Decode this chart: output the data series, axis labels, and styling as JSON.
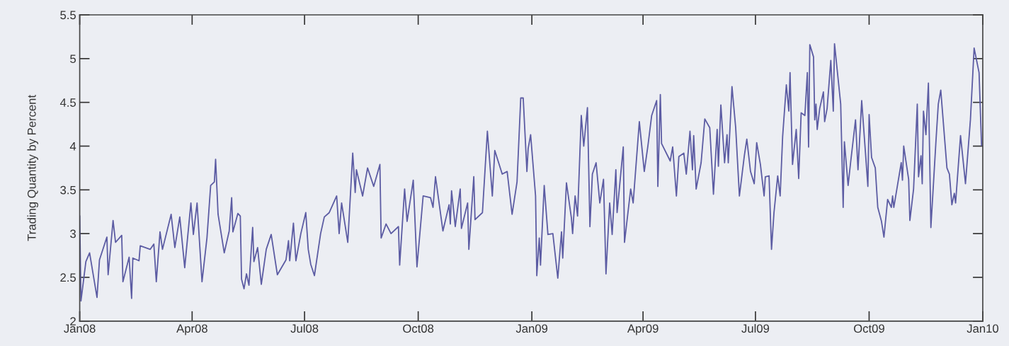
{
  "chart_data": {
    "type": "line",
    "ylabel": "Trading Quantity by Percent",
    "xlim": [
      "2008-01-01",
      "2010-01-01"
    ],
    "xticks": [
      {
        "value": "2008-01-01",
        "label": "Jan08"
      },
      {
        "value": "2008-04-01",
        "label": "Apr08"
      },
      {
        "value": "2008-07-01",
        "label": "Jul08"
      },
      {
        "value": "2008-10-01",
        "label": "Oct08"
      },
      {
        "value": "2009-01-01",
        "label": "Jan09"
      },
      {
        "value": "2009-04-01",
        "label": "Apr09"
      },
      {
        "value": "2009-07-01",
        "label": "Jul09"
      },
      {
        "value": "2009-10-01",
        "label": "Oct09"
      },
      {
        "value": "2010-01-01",
        "label": "Jan10"
      }
    ],
    "ylim": [
      2,
      5.5
    ],
    "yticks": [
      2,
      2.5,
      3,
      3.5,
      4,
      4.5,
      5,
      5.5
    ],
    "grid": false,
    "marker": "none",
    "line_style": "solid",
    "x": [
      "2008-01-01",
      "2008-01-02",
      "2008-01-06",
      "2008-01-09",
      "2008-01-13",
      "2008-01-15",
      "2008-01-17",
      "2008-01-23",
      "2008-01-24",
      "2008-01-28",
      "2008-01-30",
      "2008-02-04",
      "2008-02-05",
      "2008-02-10",
      "2008-02-12",
      "2008-02-13",
      "2008-02-18",
      "2008-02-19",
      "2008-02-27",
      "2008-03-01",
      "2008-03-03",
      "2008-03-06",
      "2008-03-08",
      "2008-03-15",
      "2008-03-18",
      "2008-03-22",
      "2008-03-26",
      "2008-03-31",
      "2008-04-02",
      "2008-04-05",
      "2008-04-09",
      "2008-04-13",
      "2008-04-16",
      "2008-04-19",
      "2008-04-20",
      "2008-04-22",
      "2008-04-27",
      "2008-05-01",
      "2008-05-03",
      "2008-05-04",
      "2008-05-08",
      "2008-05-10",
      "2008-05-11",
      "2008-05-13",
      "2008-05-15",
      "2008-05-17",
      "2008-05-20",
      "2008-05-21",
      "2008-05-24",
      "2008-05-27",
      "2008-05-31",
      "2008-06-04",
      "2008-06-09",
      "2008-06-16",
      "2008-06-18",
      "2008-06-19",
      "2008-06-22",
      "2008-06-24",
      "2008-06-28",
      "2008-07-02",
      "2008-07-04",
      "2008-07-06",
      "2008-07-09",
      "2008-07-14",
      "2008-07-17",
      "2008-07-21",
      "2008-07-27",
      "2008-07-29",
      "2008-07-31",
      "2008-08-05",
      "2008-08-09",
      "2008-08-11",
      "2008-08-12",
      "2008-08-17",
      "2008-08-21",
      "2008-08-26",
      "2008-08-31",
      "2008-09-01",
      "2008-09-05",
      "2008-09-09",
      "2008-09-15",
      "2008-09-16",
      "2008-09-20",
      "2008-09-22",
      "2008-09-27",
      "2008-09-30",
      "2008-10-05",
      "2008-10-11",
      "2008-10-13",
      "2008-10-15",
      "2008-10-21",
      "2008-10-26",
      "2008-10-27",
      "2008-10-28",
      "2008-10-31",
      "2008-11-04",
      "2008-11-05",
      "2008-11-10",
      "2008-11-11",
      "2008-11-15",
      "2008-11-16",
      "2008-11-22",
      "2008-11-26",
      "2008-11-30",
      "2008-12-02",
      "2008-12-08",
      "2008-12-12",
      "2008-12-16",
      "2008-12-20",
      "2008-12-23",
      "2008-12-25",
      "2008-12-28",
      "2008-12-29",
      "2008-12-31",
      "2009-01-04",
      "2009-01-05",
      "2009-01-07",
      "2009-01-08",
      "2009-01-11",
      "2009-01-14",
      "2009-01-18",
      "2009-01-22",
      "2009-01-25",
      "2009-01-26",
      "2009-01-29",
      "2009-02-02",
      "2009-02-03",
      "2009-02-05",
      "2009-02-07",
      "2009-02-10",
      "2009-02-12",
      "2009-02-15",
      "2009-02-17",
      "2009-02-19",
      "2009-02-22",
      "2009-02-25",
      "2009-02-28",
      "2009-03-02",
      "2009-03-05",
      "2009-03-07",
      "2009-03-10",
      "2009-03-11",
      "2009-03-16",
      "2009-03-17",
      "2009-03-22",
      "2009-03-24",
      "2009-03-29",
      "2009-04-02",
      "2009-04-05",
      "2009-04-08",
      "2009-04-12",
      "2009-04-13",
      "2009-04-15",
      "2009-04-16",
      "2009-04-23",
      "2009-04-25",
      "2009-04-28",
      "2009-04-30",
      "2009-05-04",
      "2009-05-06",
      "2009-05-09",
      "2009-05-11",
      "2009-05-12",
      "2009-05-14",
      "2009-05-18",
      "2009-05-21",
      "2009-05-25",
      "2009-05-28",
      "2009-05-31",
      "2009-06-01",
      "2009-06-03",
      "2009-06-06",
      "2009-06-08",
      "2009-06-09",
      "2009-06-12",
      "2009-06-15",
      "2009-06-18",
      "2009-06-22",
      "2009-06-24",
      "2009-06-27",
      "2009-06-30",
      "2009-07-02",
      "2009-07-05",
      "2009-07-08",
      "2009-07-09",
      "2009-07-12",
      "2009-07-14",
      "2009-07-16",
      "2009-07-19",
      "2009-07-21",
      "2009-07-23",
      "2009-07-26",
      "2009-07-28",
      "2009-07-29",
      "2009-07-31",
      "2009-08-03",
      "2009-08-05",
      "2009-08-07",
      "2009-08-10",
      "2009-08-12",
      "2009-08-13",
      "2009-08-14",
      "2009-08-17",
      "2009-08-18",
      "2009-08-19",
      "2009-08-20",
      "2009-08-22",
      "2009-08-25",
      "2009-08-26",
      "2009-08-28",
      "2009-08-31",
      "2009-09-02",
      "2009-09-03",
      "2009-09-08",
      "2009-09-10",
      "2009-09-11",
      "2009-09-14",
      "2009-09-16",
      "2009-09-20",
      "2009-09-22",
      "2009-09-25",
      "2009-09-30",
      "2009-10-01",
      "2009-10-03",
      "2009-10-06",
      "2009-10-08",
      "2009-10-11",
      "2009-10-13",
      "2009-10-16",
      "2009-10-19",
      "2009-10-20",
      "2009-10-21",
      "2009-10-27",
      "2009-10-28",
      "2009-10-29",
      "2009-11-02",
      "2009-11-03",
      "2009-11-06",
      "2009-11-09",
      "2009-11-10",
      "2009-11-12",
      "2009-11-13",
      "2009-11-14",
      "2009-11-16",
      "2009-11-18",
      "2009-11-20",
      "2009-11-24",
      "2009-11-26",
      "2009-11-28",
      "2009-12-03",
      "2009-12-05",
      "2009-12-07",
      "2009-12-09",
      "2009-12-10",
      "2009-12-14",
      "2009-12-17",
      "2009-12-18",
      "2009-12-22",
      "2009-12-25",
      "2009-12-29",
      "2009-12-31"
    ],
    "series": [
      {
        "color": "#5c5ca3",
        "values": [
          3.2,
          2.23,
          2.68,
          2.78,
          2.44,
          2.27,
          2.7,
          2.96,
          2.53,
          3.15,
          2.9,
          2.98,
          2.45,
          2.73,
          2.26,
          2.72,
          2.69,
          2.86,
          2.82,
          2.88,
          2.45,
          3.02,
          2.82,
          3.22,
          2.84,
          3.19,
          2.61,
          3.35,
          2.99,
          3.35,
          2.45,
          2.95,
          3.55,
          3.59,
          3.85,
          3.22,
          2.78,
          3.03,
          3.41,
          3.02,
          3.23,
          3.2,
          2.48,
          2.37,
          2.54,
          2.41,
          3.07,
          2.68,
          2.84,
          2.42,
          2.82,
          2.99,
          2.53,
          2.7,
          2.92,
          2.69,
          3.12,
          2.69,
          3.0,
          3.24,
          2.82,
          2.65,
          2.52,
          3.0,
          3.19,
          3.24,
          3.43,
          3.0,
          3.35,
          2.9,
          3.92,
          3.47,
          3.73,
          3.43,
          3.75,
          3.54,
          3.79,
          2.95,
          3.11,
          3.0,
          3.08,
          2.64,
          3.51,
          3.14,
          3.61,
          2.62,
          3.43,
          3.41,
          3.3,
          3.65,
          3.03,
          3.33,
          3.11,
          3.49,
          3.08,
          3.51,
          3.06,
          3.35,
          2.82,
          3.65,
          3.16,
          3.24,
          4.17,
          3.43,
          3.95,
          3.68,
          3.71,
          3.22,
          3.59,
          4.55,
          4.55,
          3.71,
          3.97,
          4.13,
          3.43,
          2.52,
          2.95,
          2.64,
          3.55,
          2.99,
          3.0,
          2.49,
          3.02,
          2.72,
          3.58,
          3.18,
          3.0,
          3.43,
          3.2,
          4.35,
          4.0,
          4.44,
          3.08,
          3.68,
          3.81,
          3.35,
          3.62,
          2.54,
          3.35,
          2.99,
          3.73,
          3.24,
          3.99,
          2.9,
          3.51,
          3.35,
          4.28,
          3.71,
          4.01,
          4.35,
          4.52,
          3.54,
          4.59,
          4.03,
          3.83,
          3.99,
          3.43,
          3.88,
          3.92,
          3.68,
          4.17,
          3.73,
          4.12,
          3.51,
          3.81,
          4.31,
          4.21,
          3.45,
          4.19,
          3.77,
          4.47,
          3.81,
          4.13,
          3.81,
          4.68,
          4.21,
          3.43,
          3.89,
          4.08,
          3.71,
          3.57,
          4.04,
          3.79,
          3.43,
          3.65,
          3.66,
          2.82,
          3.24,
          3.66,
          3.43,
          4.11,
          4.7,
          4.4,
          4.84,
          3.79,
          4.19,
          3.63,
          4.38,
          4.35,
          4.84,
          3.99,
          5.16,
          5.02,
          4.3,
          4.48,
          4.19,
          4.43,
          4.62,
          4.28,
          4.43,
          4.98,
          4.4,
          5.17,
          4.48,
          3.3,
          4.05,
          3.55,
          3.81,
          4.3,
          3.73,
          4.52,
          3.54,
          4.36,
          3.87,
          3.75,
          3.3,
          3.14,
          2.96,
          3.39,
          3.3,
          3.43,
          3.3,
          3.81,
          3.61,
          4.0,
          3.62,
          3.15,
          3.51,
          4.48,
          3.65,
          3.89,
          3.57,
          4.4,
          4.13,
          4.72,
          3.07,
          4.03,
          4.48,
          4.64,
          3.75,
          3.68,
          3.33,
          3.46,
          3.35,
          4.12,
          3.71,
          3.57,
          4.3,
          5.12,
          4.84,
          4.01
        ]
      }
    ]
  }
}
